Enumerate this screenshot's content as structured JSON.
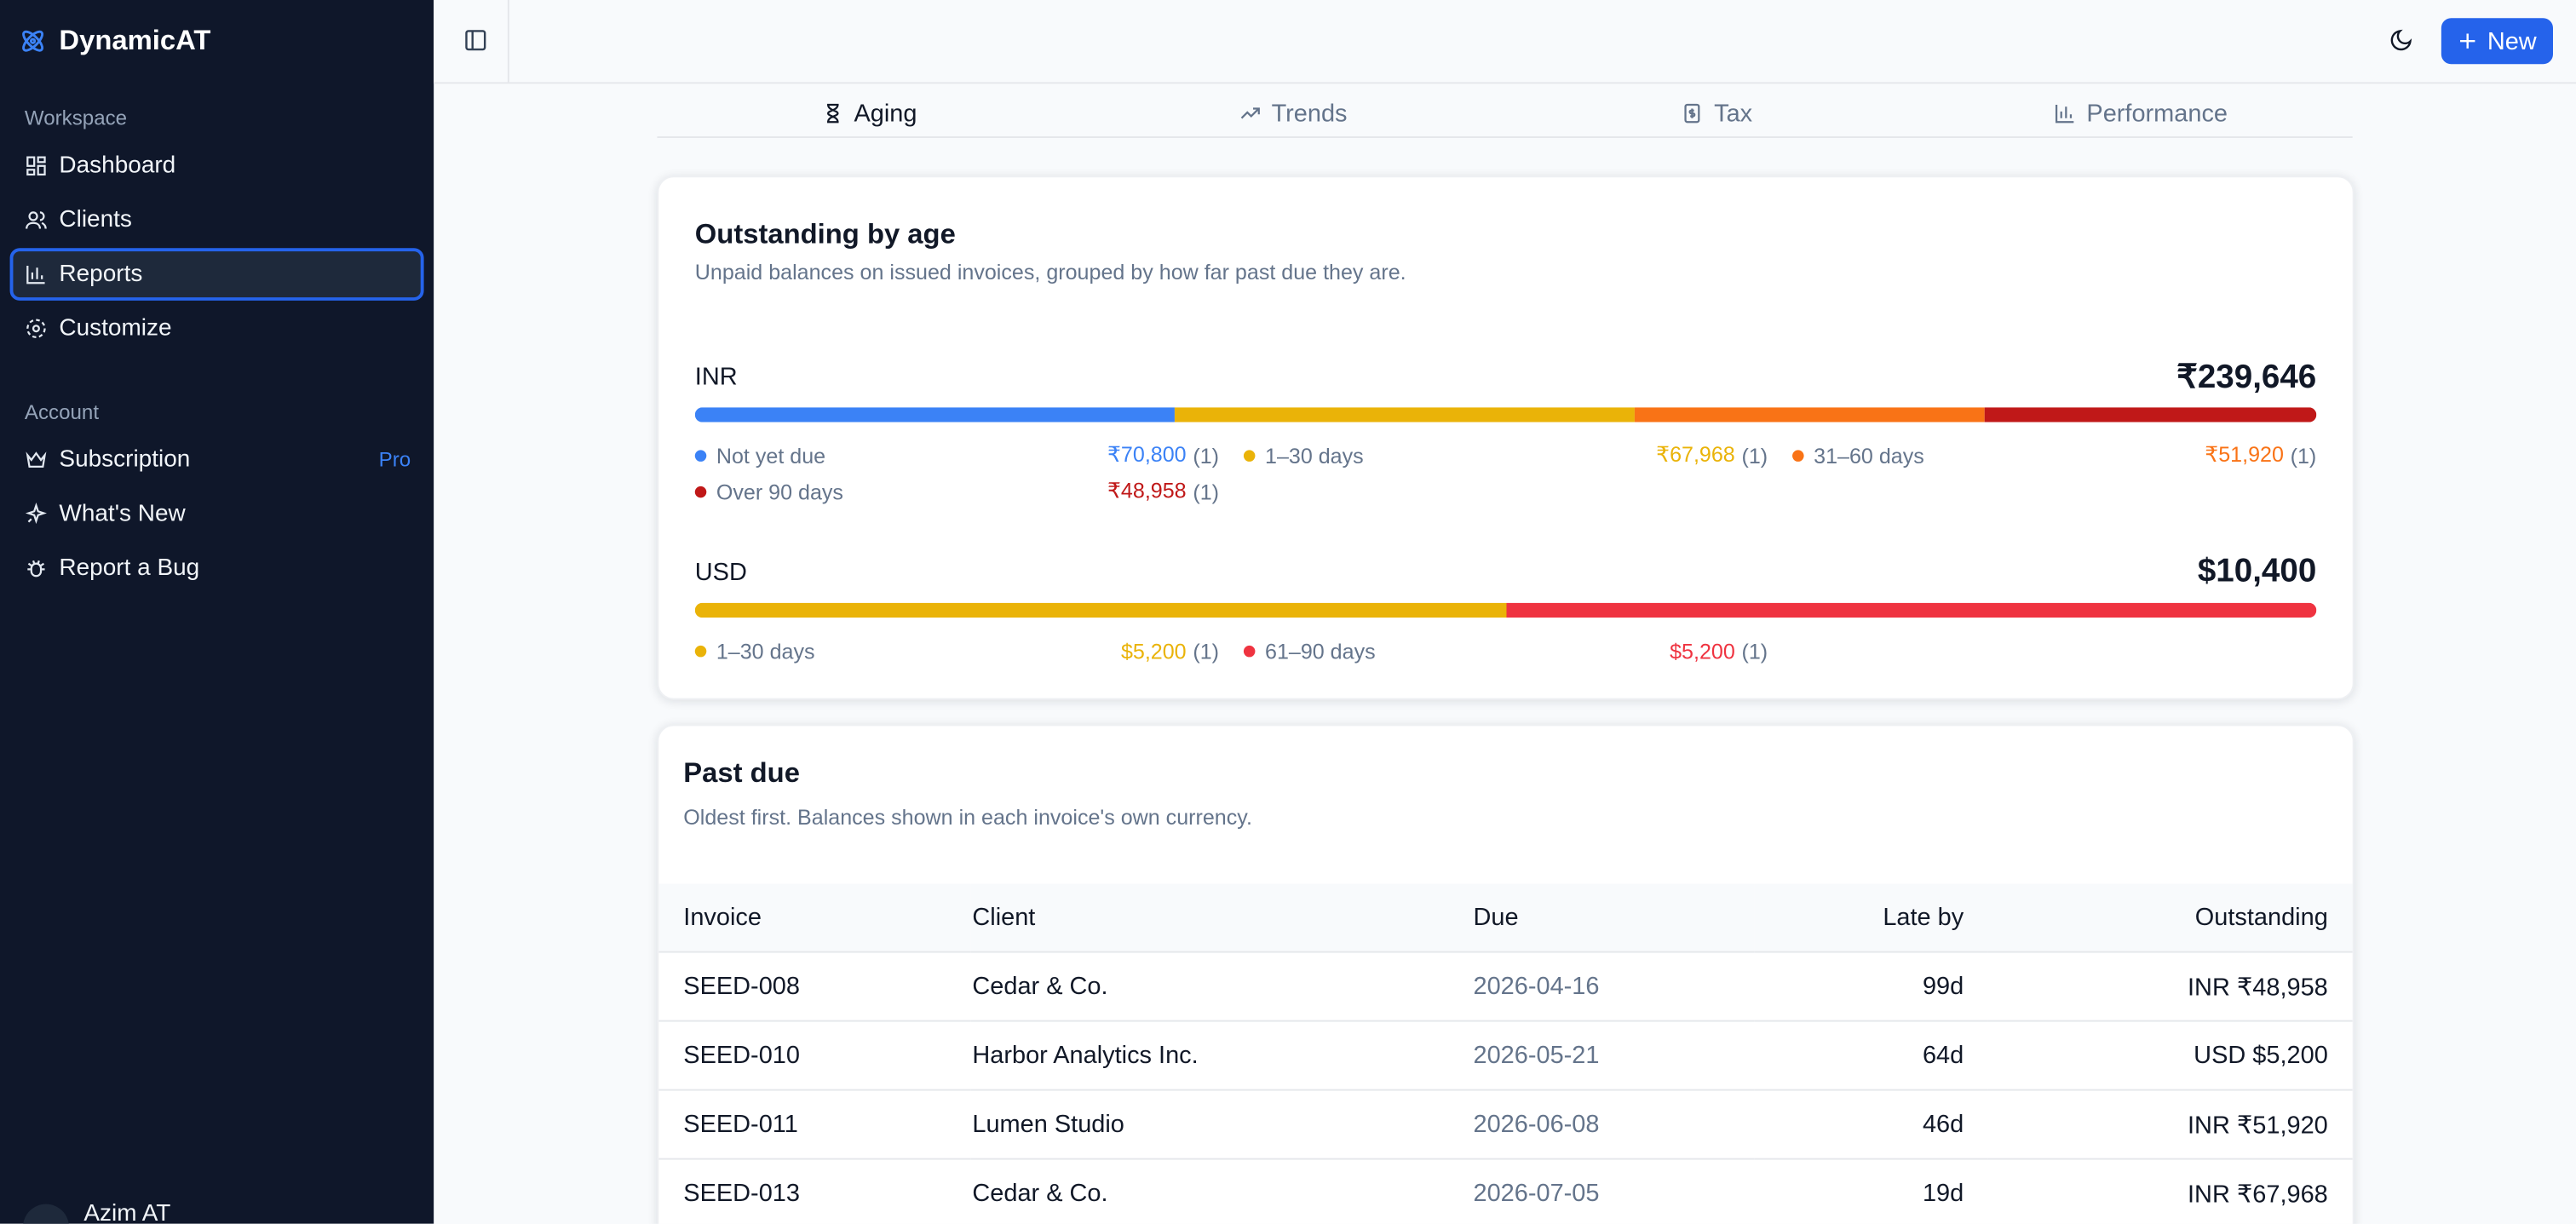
{
  "sidebar": {
    "brand": "DynamicAT",
    "sections": [
      {
        "label": "Workspace",
        "items": [
          "Dashboard",
          "Clients",
          "Reports",
          "Customize"
        ]
      },
      {
        "label": "Account",
        "items": [
          "Subscription",
          "What's New",
          "Report a Bug"
        ]
      }
    ],
    "badge": "Pro",
    "user": "Azim AT"
  },
  "topbar": {
    "button": "New"
  },
  "tabs": [
    "Aging",
    "Trends",
    "Tax",
    "Performance"
  ],
  "aging": {
    "title": "Outstanding by age",
    "subtitle": "Unpaid balances on issued invoices, grouped by how far past due they are.",
    "currencies": [
      {
        "code": "INR",
        "total": {
          "value": 239646,
          "label": "₹239,646"
        },
        "buckets": [
          {
            "name": "Not yet due",
            "amount": {
              "value": 70800,
              "label": "₹70,800"
            },
            "count": "(1)",
            "color": "#3b82f6"
          },
          {
            "name": "1–30 days",
            "amount": {
              "value": 67968,
              "label": "₹67,968"
            },
            "count": "(1)",
            "color": "#eab308"
          },
          {
            "name": "31–60 days",
            "amount": {
              "value": 51920,
              "label": "₹51,920"
            },
            "count": "(1)",
            "color": "#f97316"
          },
          {
            "name": "Over 90 days",
            "amount": {
              "value": 48958,
              "label": "₹48,958"
            },
            "count": "(1)",
            "color": "#c01818"
          }
        ]
      },
      {
        "code": "USD",
        "total": {
          "value": 10400,
          "label": "$10,400"
        },
        "buckets": [
          {
            "name": "1–30 days",
            "amount": {
              "value": 5200,
              "label": "$5,200"
            },
            "count": "(1)",
            "color": "#eab308"
          },
          {
            "name": "61–90 days",
            "amount": {
              "value": 5200,
              "label": "$5,200"
            },
            "count": "(1)",
            "color": "#ef3340"
          }
        ]
      }
    ]
  },
  "past_due": {
    "title": "Past due",
    "subtitle": "Oldest first. Balances shown in each invoice's own currency.",
    "columns": [
      "Invoice",
      "Client",
      "Due",
      "Late by",
      "Outstanding"
    ],
    "rows": [
      [
        "SEED-008",
        "Cedar & Co.",
        "2026-04-16",
        "99d",
        "INR ₹48,958"
      ],
      [
        "SEED-010",
        "Harbor Analytics Inc.",
        "2026-05-21",
        "64d",
        "USD $5,200"
      ],
      [
        "SEED-011",
        "Lumen Studio",
        "2026-06-08",
        "46d",
        "INR ₹51,920"
      ],
      [
        "SEED-013",
        "Cedar & Co.",
        "2026-07-05",
        "19d",
        "INR ₹67,968"
      ]
    ]
  }
}
